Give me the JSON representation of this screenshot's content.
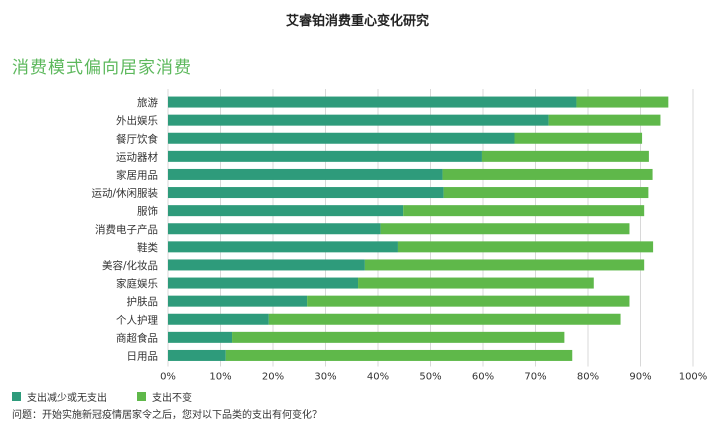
{
  "title": "艾睿铂消费重心变化研究",
  "subtitle": "消费模式偏向居家消费",
  "note": "问题：开始实施新冠疫情居家令之后，您对以下品类的支出有何变化？",
  "colors": {
    "decrease": "#2e9b7b",
    "unchanged": "#5fb84a",
    "grid": "#d8d8d8"
  },
  "chart_data": {
    "type": "bar",
    "orientation": "horizontal",
    "stacked": true,
    "categories": [
      "旅游",
      "外出娱乐",
      "餐厅饮食",
      "运动器材",
      "家居用品",
      "运动/休闲服装",
      "服饰",
      "消费电子产品",
      "鞋类",
      "美容/化妆品",
      "家庭娱乐",
      "护肤品",
      "个人护理",
      "商超食品",
      "日用品"
    ],
    "series": [
      {
        "name": "支出减少或无支出",
        "values": [
          77.8,
          72.5,
          66.0,
          59.8,
          52.3,
          52.5,
          44.8,
          40.5,
          43.8,
          37.5,
          36.2,
          26.5,
          19.2,
          12.2,
          11.0
        ]
      },
      {
        "name": "支出不变",
        "values": [
          17.5,
          21.3,
          24.3,
          31.8,
          40.0,
          39.0,
          45.9,
          47.4,
          48.6,
          53.2,
          44.9,
          61.4,
          67.0,
          63.3,
          66.0
        ]
      }
    ],
    "xlim": [
      0,
      100
    ],
    "xticks": [
      "0%",
      "10%",
      "20%",
      "30%",
      "40%",
      "50%",
      "60%",
      "70%",
      "80%",
      "90%",
      "100%"
    ],
    "grid": true,
    "legend_position": "bottom-left"
  }
}
